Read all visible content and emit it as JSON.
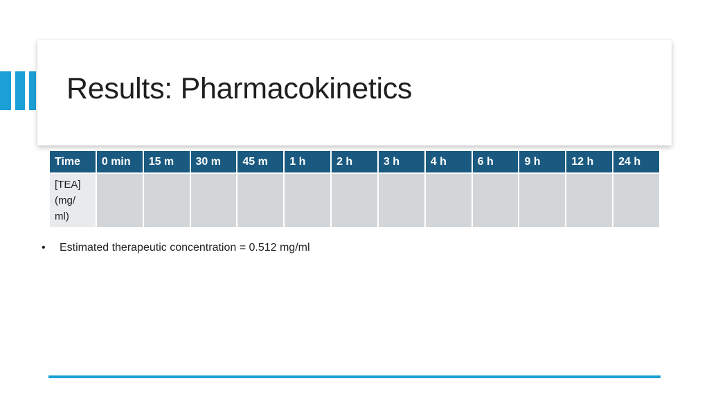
{
  "slide": {
    "title": "Results: Pharmacokinetics",
    "accent_color": "#1a9fd6",
    "table_header_color": "#1a5a80",
    "table_cell_color": "#d3d6d9"
  },
  "table": {
    "headers": [
      "Time",
      "0 min",
      "15 m",
      "30 m",
      "45 m",
      "1 h",
      "2 h",
      "3 h",
      "4 h",
      "6 h",
      "9 h",
      "12 h",
      "24  h"
    ],
    "row_label_lines": [
      "[TEA]",
      "(mg/",
      "ml)"
    ],
    "values": [
      "",
      "",
      "",
      "",
      "",
      "",
      "",
      "",
      "",
      "",
      "",
      ""
    ]
  },
  "bullets": [
    {
      "marker": "•",
      "text": "Estimated therapeutic concentration = 0.512 mg/ml"
    }
  ]
}
